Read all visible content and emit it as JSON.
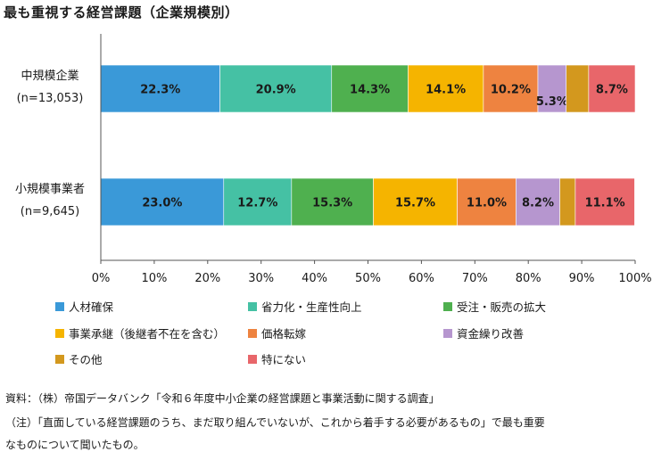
{
  "chart_data": {
    "type": "bar",
    "orientation": "horizontal",
    "stacked": true,
    "title": "最も重視する経営課題（企業規模別）",
    "categories": [
      {
        "name": "中規模企業",
        "n": "(n=13,053)"
      },
      {
        "name": "小規模事業者",
        "n": "(n=9,645)"
      }
    ],
    "series": [
      {
        "name": "人材確保",
        "color": "#3a99d8",
        "values": [
          22.3,
          23.0
        ],
        "labels": [
          "22.3%",
          "23.0%"
        ]
      },
      {
        "name": "省力化・生産性向上",
        "color": "#45c1a4",
        "values": [
          20.9,
          12.7
        ],
        "labels": [
          "20.9%",
          "12.7%"
        ]
      },
      {
        "name": "受注・販売の拡大",
        "color": "#4fb04f",
        "values": [
          14.3,
          15.3
        ],
        "labels": [
          "14.3%",
          "15.3%"
        ]
      },
      {
        "name": "事業承継（後継者不在を含む）",
        "color": "#f5b400",
        "values": [
          14.1,
          15.7
        ],
        "labels": [
          "14.1%",
          "15.7%"
        ]
      },
      {
        "name": "価格転嫁",
        "color": "#ee8340",
        "values": [
          10.2,
          11.0
        ],
        "labels": [
          "10.2%",
          "11.0%"
        ]
      },
      {
        "name": "資金繰り改善",
        "color": "#b696cf",
        "values": [
          5.3,
          8.2
        ],
        "labels": [
          "5.3%",
          "8.2%"
        ]
      },
      {
        "name": "その他",
        "color": "#d3981e",
        "values": [
          4.2,
          2.9
        ],
        "labels": [
          "",
          ""
        ]
      },
      {
        "name": "特にない",
        "color": "#e8666a",
        "values": [
          8.7,
          11.1
        ],
        "labels": [
          "8.7%",
          "11.1%"
        ]
      }
    ],
    "xlim": [
      0,
      100
    ],
    "xticks": [
      "0%",
      "10%",
      "20%",
      "30%",
      "40%",
      "50%",
      "60%",
      "70%",
      "80%",
      "90%",
      "100%"
    ],
    "legend_position": "bottom"
  },
  "footer": {
    "source": "資料：（株）帝国データバンク「令和６年度中小企業の経営課題と事業活動に関する調査」",
    "note_line1": "（注）「直面している経営課題のうち、まだ取り組んでいないが、これから着手する必要があるもの」で最も重要",
    "note_line2": "なものについて聞いたもの。"
  }
}
